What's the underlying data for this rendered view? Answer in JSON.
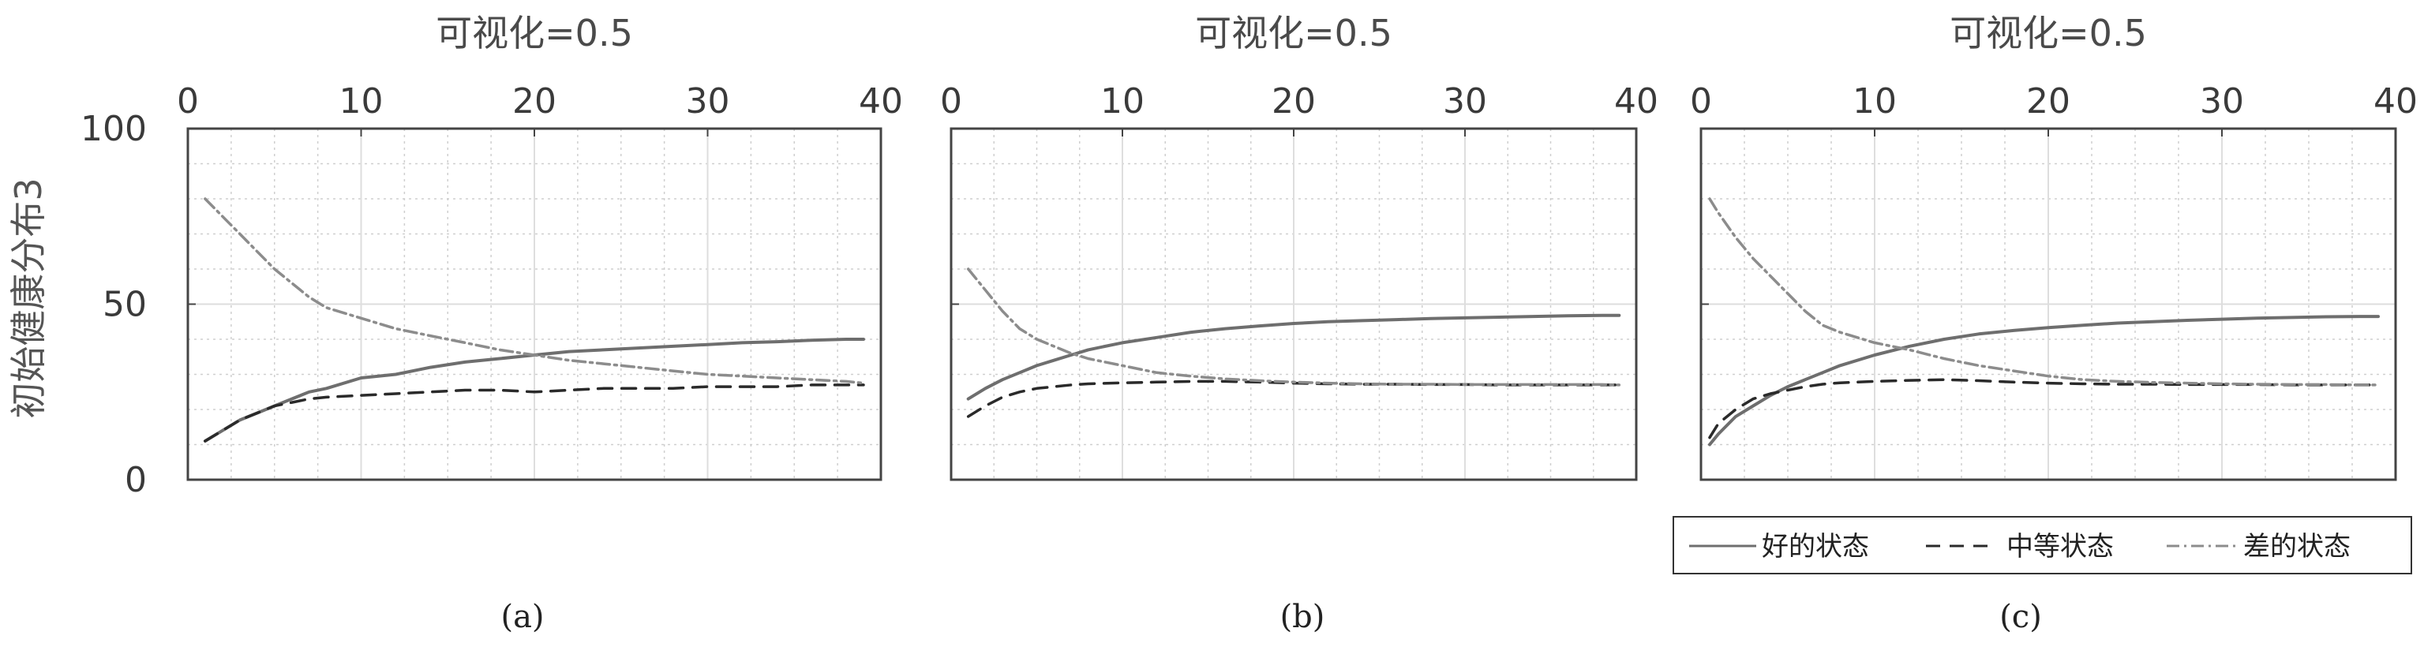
{
  "figure": {
    "panel_labels": [
      "(a)",
      "(b)",
      "(c)"
    ],
    "shared_ylabel": "初始健康分布3"
  },
  "legend": {
    "entries": [
      "好的状态",
      "中等状态",
      "差的状态"
    ],
    "styles": [
      "solid",
      "dashed",
      "dashdot"
    ],
    "placement": "below-right"
  },
  "colors": {
    "good": "#6e6e6e",
    "medium": "#2a2a2a",
    "poor": "#8c8c8c",
    "grid": "#cfcfcf",
    "axis": "#444444"
  },
  "chart_data": [
    {
      "type": "line",
      "title": "可视化=0.5",
      "ylabel": "初始健康分布3",
      "xlim": [
        0,
        40
      ],
      "ylim": [
        0,
        100
      ],
      "xticks": [
        0,
        10,
        20,
        30,
        40
      ],
      "yticks": [
        0,
        50,
        100
      ],
      "xaxis_position": "top",
      "grid": true,
      "x": [
        1,
        2,
        3,
        4,
        5,
        6,
        7,
        8,
        10,
        12,
        14,
        16,
        18,
        20,
        22,
        24,
        26,
        28,
        30,
        32,
        34,
        36,
        38,
        39
      ],
      "series": [
        {
          "name": "好的状态",
          "values": [
            11,
            14,
            17,
            19,
            21,
            23,
            25,
            26,
            29,
            30,
            32,
            33.5,
            34.5,
            35.5,
            36.5,
            37,
            37.5,
            38,
            38.5,
            39,
            39.3,
            39.7,
            40,
            40
          ]
        },
        {
          "name": "中等状态",
          "values": [
            11,
            14,
            17,
            19,
            21,
            22,
            23,
            23.5,
            24,
            24.5,
            25,
            25.5,
            25.5,
            25,
            25.5,
            26,
            26,
            26,
            26.5,
            26.5,
            26.5,
            27,
            27,
            27
          ]
        },
        {
          "name": "差的状态",
          "values": [
            80,
            75,
            70,
            65,
            60,
            56,
            52,
            49,
            46,
            43,
            41,
            39,
            37,
            35.5,
            34,
            33,
            32,
            31,
            30,
            29.5,
            29,
            28.5,
            28,
            27.5
          ]
        }
      ]
    },
    {
      "type": "line",
      "title": "可视化=0.5",
      "xlim": [
        0,
        40
      ],
      "ylim": [
        0,
        100
      ],
      "xticks": [
        0,
        10,
        20,
        30,
        40
      ],
      "yticks": [
        0,
        50,
        100
      ],
      "xaxis_position": "top",
      "grid": true,
      "x": [
        1,
        2,
        3,
        4,
        5,
        6,
        7,
        8,
        10,
        12,
        14,
        16,
        18,
        20,
        22,
        24,
        26,
        28,
        30,
        32,
        34,
        36,
        38,
        39
      ],
      "series": [
        {
          "name": "好的状态",
          "values": [
            23,
            26,
            28.5,
            30.5,
            32.5,
            34,
            35.5,
            37,
            39,
            40.5,
            42,
            43,
            43.8,
            44.5,
            45,
            45.3,
            45.6,
            45.9,
            46.1,
            46.3,
            46.5,
            46.7,
            46.8,
            46.8
          ]
        },
        {
          "name": "中等状态",
          "values": [
            18,
            21,
            23.5,
            25,
            26,
            26.5,
            27,
            27.3,
            27.6,
            27.8,
            28,
            28,
            27.8,
            27.5,
            27.3,
            27.2,
            27.2,
            27.1,
            27.1,
            27,
            27,
            27,
            27,
            27
          ]
        },
        {
          "name": "差的状态",
          "values": [
            60,
            54,
            48,
            43,
            40,
            38,
            36,
            34.5,
            32.5,
            30.5,
            29.5,
            28.7,
            28.2,
            27.8,
            27.5,
            27.3,
            27.2,
            27.2,
            27.1,
            27.1,
            27.1,
            27.1,
            27.1,
            27
          ]
        }
      ]
    },
    {
      "type": "line",
      "title": "可视化=0.5",
      "xlim": [
        0,
        40
      ],
      "ylim": [
        0,
        100
      ],
      "xticks": [
        0,
        10,
        20,
        30,
        40
      ],
      "yticks": [
        0,
        50,
        100
      ],
      "xaxis_position": "top",
      "grid": true,
      "x": [
        0.5,
        1,
        2,
        3,
        4,
        5,
        6,
        7,
        8,
        10,
        12,
        14,
        16,
        18,
        20,
        22,
        24,
        26,
        28,
        30,
        32,
        34,
        36,
        38,
        39
      ],
      "series": [
        {
          "name": "好的状态",
          "values": [
            10,
            13,
            18,
            21,
            24,
            26.5,
            28.5,
            30.5,
            32.5,
            35.5,
            38,
            40,
            41.5,
            42.5,
            43.3,
            44,
            44.6,
            45,
            45.4,
            45.7,
            46,
            46.2,
            46.4,
            46.5,
            46.5
          ]
        },
        {
          "name": "中等状态",
          "values": [
            12,
            16,
            20,
            23,
            24.5,
            25.5,
            26.5,
            27.2,
            27.6,
            28,
            28.3,
            28.5,
            28.2,
            27.8,
            27.5,
            27.3,
            27.2,
            27.2,
            27.1,
            27.1,
            27.1,
            27,
            27,
            27,
            27
          ]
        },
        {
          "name": "差的状态",
          "values": [
            80,
            76,
            69,
            63,
            58,
            53,
            48,
            44,
            42,
            39,
            37,
            34.5,
            32.5,
            31,
            29.5,
            28.5,
            28,
            27.7,
            27.5,
            27.3,
            27.2,
            27.1,
            27.1,
            27,
            27
          ]
        }
      ]
    }
  ]
}
